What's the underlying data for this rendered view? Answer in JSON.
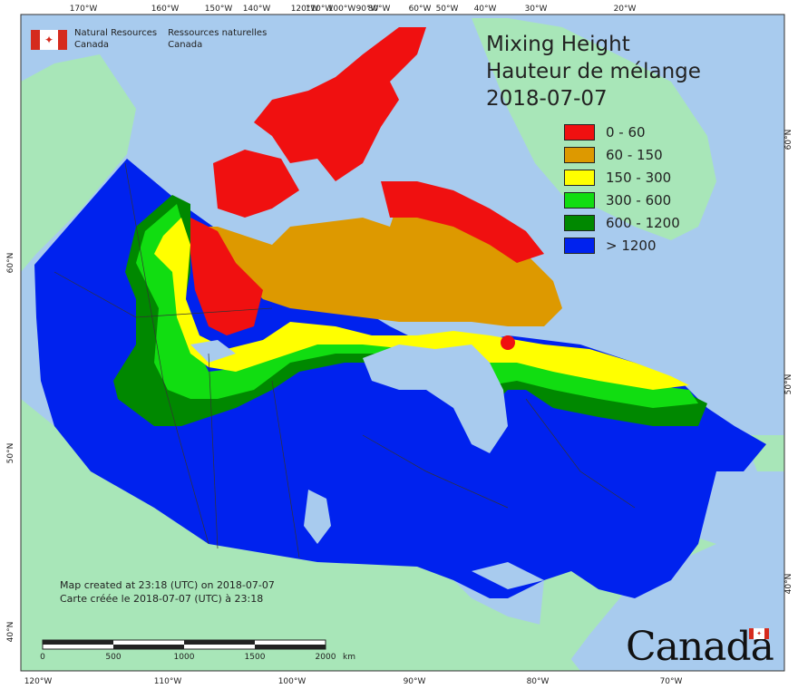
{
  "title": {
    "line1": "Mixing Height",
    "line2": "Hauteur de mélange",
    "date": "2018-07-07"
  },
  "legend": [
    {
      "label": "0 - 60",
      "color": "#f01010"
    },
    {
      "label": "60 - 150",
      "color": "#dd9900"
    },
    {
      "label": "150 - 300",
      "color": "#ffff00"
    },
    {
      "label": "300 - 600",
      "color": "#11dd11"
    },
    {
      "label": "600 - 1200",
      "color": "#008800"
    },
    {
      "label": "> 1200",
      "color": "#0022ee"
    }
  ],
  "agency": {
    "en_line1": "Natural Resources",
    "en_line2": "Canada",
    "fr_line1": "Ressources naturelles",
    "fr_line2": "Canada"
  },
  "credit": {
    "en": "Map created at 23:18 (UTC) on 2018-07-07",
    "fr": "Carte créée le 2018-07-07 (UTC) à 23:18"
  },
  "scale_bar": {
    "labels": [
      "0",
      "500",
      "1000",
      "1500",
      "2000"
    ],
    "unit": "km"
  },
  "top_ticks": [
    "170°W",
    "160°W",
    "150°W",
    "140°W",
    "120°W",
    "110°W",
    "100°W",
    "90°W",
    "80°W",
    "60°W",
    "50°W",
    "40°W",
    "30°W",
    "20°W"
  ],
  "bottom_ticks": [
    "120°W",
    "110°W",
    "100°W",
    "90°W",
    "80°W",
    "70°W"
  ],
  "left_ticks": [
    "60°N",
    "50°N",
    "40°N"
  ],
  "right_ticks": [
    "60°N",
    "50°N",
    "40°N"
  ],
  "wordmark": "Canada",
  "colors": {
    "ocean": "#a8cbee",
    "land": "#a8e6b8",
    "border": "#333333"
  }
}
